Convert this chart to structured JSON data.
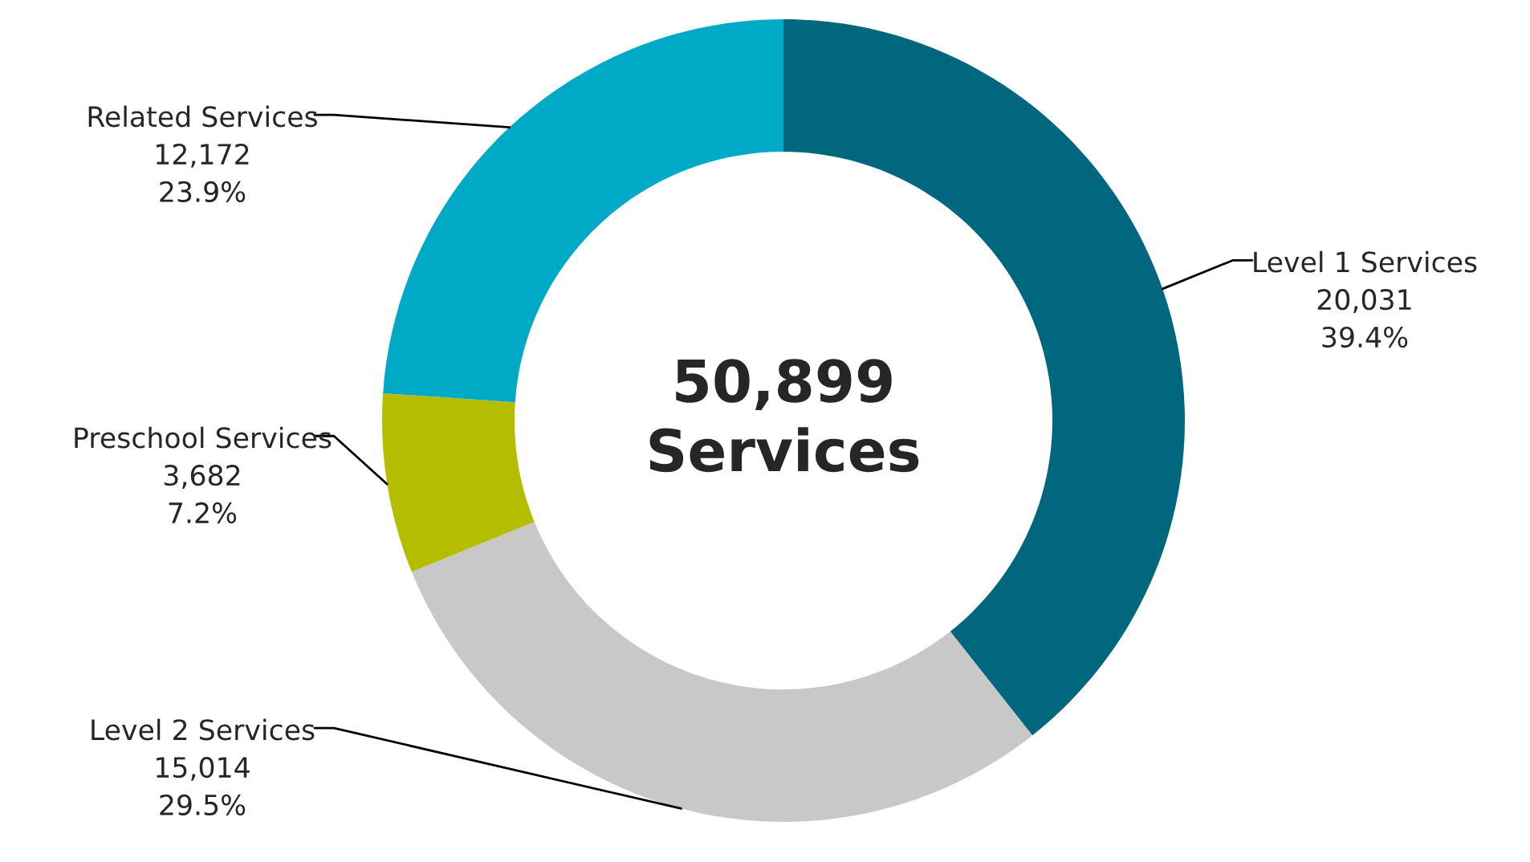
{
  "chart_data": {
    "type": "donut",
    "categories": [
      "Level 1 Services",
      "Level 2 Services",
      "Preschool Services",
      "Related Services"
    ],
    "values": [
      20031,
      15014,
      3682,
      12172
    ],
    "colors": [
      "#00677f",
      "#c8c8c8",
      "#b5bd00",
      "#00a9c6"
    ],
    "value_labels": [
      "20,031\n39.4%",
      "15,014\n29.5%",
      "3,682\n7.2%",
      "12,172\n23.9%"
    ],
    "annotations": [
      "50,899\nServices"
    ],
    "legend": false
  }
}
